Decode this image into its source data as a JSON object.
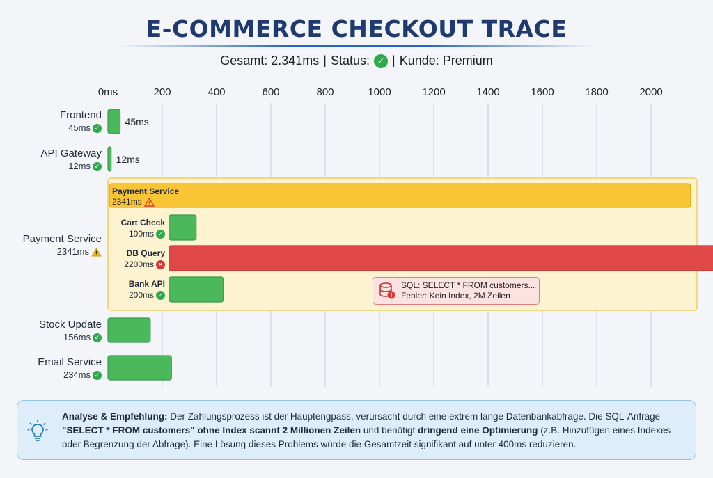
{
  "header": {
    "title": "E-COMMERCE CHECKOUT TRACE",
    "total": "Gesamt: 2.341ms",
    "status": "Status:",
    "customer": "Kunde: Premium"
  },
  "chart_data": {
    "type": "bar",
    "orientation": "horizontal",
    "title": "E-COMMERCE CHECKOUT TRACE",
    "x_unit": "ms",
    "x_ticks": [
      "0ms",
      "200",
      "400",
      "600",
      "800",
      "1000",
      "1200",
      "1400",
      "1600",
      "1800",
      "2000"
    ],
    "xlim": [
      0,
      2000
    ],
    "grid": true,
    "spans": [
      {
        "name": "Frontend",
        "duration": 45,
        "duration_label": "45ms",
        "status": "ok",
        "value_label": "45ms"
      },
      {
        "name": "API Gateway",
        "duration": 12,
        "duration_label": "12ms",
        "status": "ok",
        "value_label": "12ms"
      },
      {
        "name": "Payment Service",
        "duration": 2341,
        "duration_label": "2341ms",
        "status": "warning",
        "children": [
          {
            "name": "Cart Check",
            "start": 225,
            "duration": 100,
            "duration_label": "100ms",
            "status": "ok"
          },
          {
            "name": "DB Query",
            "start": 225,
            "duration": 2200,
            "duration_label": "2200ms",
            "status": "error"
          },
          {
            "name": "Bank API",
            "start": 225,
            "duration": 200,
            "duration_label": "200ms",
            "status": "ok"
          }
        ]
      },
      {
        "name": "Stock Update",
        "duration": 156,
        "duration_label": "156ms",
        "status": "ok"
      },
      {
        "name": "Email Service",
        "duration": 234,
        "duration_label": "234ms",
        "status": "ok"
      }
    ],
    "colors": {
      "ok": "#4cb85c",
      "warning": "#f7c535",
      "error": "#e04848",
      "group_bg": "#fdf3d0"
    }
  },
  "annotation": {
    "line1": "SQL: SELECT * FROM customers...",
    "line2": "Fehler: Kein Index, 2M Zeilen"
  },
  "analysis": {
    "label": "Analyse & Empfehlung:",
    "t1": " Der Zahlungsprozess ist der Hauptengpass, verursacht durch eine extrem lange Datenbankabfrage. Die SQL-Anfrage ",
    "b1": "\"SELECT * FROM customers\" ohne Index scannt 2 Millionen Zeilen",
    "t2": " und benötigt ",
    "b2": "dringend eine Optimierung",
    "t3": " (z.B. Hinzufügen eines Indexes oder Begrenzung der Abfrage). Eine Lösung dieses Problems würde die Gesamtzeit signifikant auf unter 400ms reduzieren."
  }
}
